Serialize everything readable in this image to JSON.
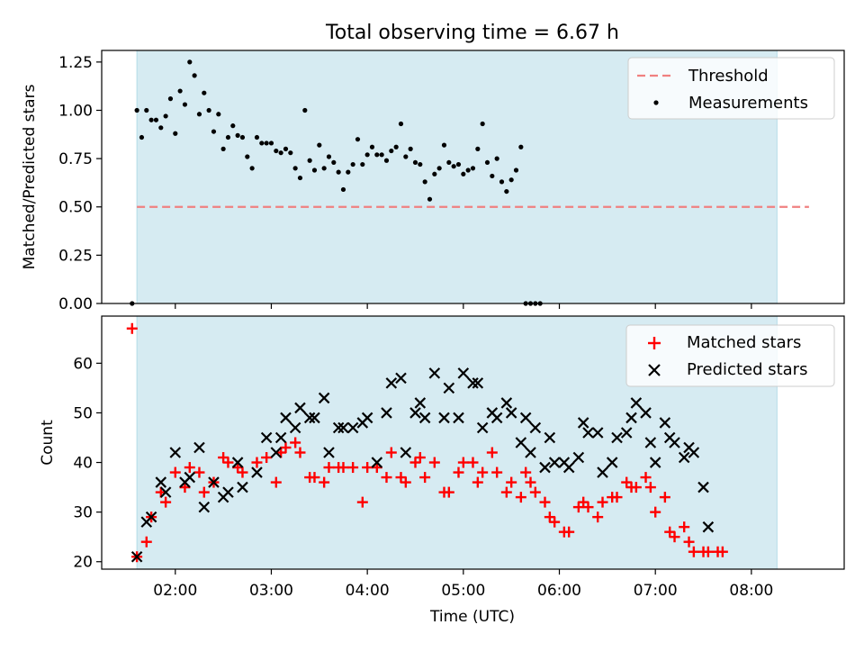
{
  "chart_data": [
    {
      "type": "scatter",
      "title": "Total observing time = 6.67 h",
      "xlabel": "",
      "ylabel": "Matched/Predicted stars",
      "ylim": [
        0,
        1.31
      ],
      "xlim": [
        "01:14",
        "08:58"
      ],
      "yticks": [
        "0.00",
        "0.25",
        "0.50",
        "0.75",
        "1.00",
        "1.25"
      ],
      "yticks_values": [
        0,
        0.25,
        0.5,
        0.75,
        1.0,
        1.25
      ],
      "shaded_interval": {
        "x": [
          "01:36",
          "08:16"
        ],
        "color": "#add8e6"
      },
      "legend_position": "upper right",
      "threshold": {
        "name": "Threshold",
        "y": 0.5,
        "x": [
          "01:36",
          "08:36"
        ],
        "color": "#f08080"
      },
      "series": [
        {
          "name": "Measurements",
          "marker": "dot",
          "color": "#000000",
          "points": [
            [
              "01:33",
              0.0
            ],
            [
              "01:36",
              1.0
            ],
            [
              "01:39",
              0.86
            ],
            [
              "01:42",
              1.0
            ],
            [
              "01:45",
              0.95
            ],
            [
              "01:48",
              0.95
            ],
            [
              "01:51",
              0.91
            ],
            [
              "01:54",
              0.97
            ],
            [
              "01:57",
              1.06
            ],
            [
              "02:00",
              0.88
            ],
            [
              "02:03",
              1.1
            ],
            [
              "02:06",
              1.03
            ],
            [
              "02:09",
              1.25
            ],
            [
              "02:12",
              1.18
            ],
            [
              "02:15",
              0.98
            ],
            [
              "02:18",
              1.09
            ],
            [
              "02:21",
              1.0
            ],
            [
              "02:24",
              0.89
            ],
            [
              "02:27",
              0.98
            ],
            [
              "02:30",
              0.8
            ],
            [
              "02:33",
              0.86
            ],
            [
              "02:36",
              0.92
            ],
            [
              "02:39",
              0.87
            ],
            [
              "02:42",
              0.86
            ],
            [
              "02:45",
              0.76
            ],
            [
              "02:48",
              0.7
            ],
            [
              "02:51",
              0.86
            ],
            [
              "02:54",
              0.83
            ],
            [
              "02:57",
              0.83
            ],
            [
              "03:00",
              0.83
            ],
            [
              "03:03",
              0.79
            ],
            [
              "03:06",
              0.78
            ],
            [
              "03:09",
              0.8
            ],
            [
              "03:12",
              0.78
            ],
            [
              "03:15",
              0.7
            ],
            [
              "03:18",
              0.65
            ],
            [
              "03:21",
              1.0
            ],
            [
              "03:24",
              0.74
            ],
            [
              "03:27",
              0.69
            ],
            [
              "03:30",
              0.82
            ],
            [
              "03:33",
              0.7
            ],
            [
              "03:36",
              0.76
            ],
            [
              "03:39",
              0.73
            ],
            [
              "03:42",
              0.68
            ],
            [
              "03:45",
              0.59
            ],
            [
              "03:48",
              0.68
            ],
            [
              "03:51",
              0.72
            ],
            [
              "03:54",
              0.85
            ],
            [
              "03:57",
              0.72
            ],
            [
              "04:00",
              0.77
            ],
            [
              "04:03",
              0.81
            ],
            [
              "04:06",
              0.77
            ],
            [
              "04:09",
              0.77
            ],
            [
              "04:12",
              0.74
            ],
            [
              "04:15",
              0.79
            ],
            [
              "04:18",
              0.81
            ],
            [
              "04:21",
              0.93
            ],
            [
              "04:24",
              0.76
            ],
            [
              "04:27",
              0.8
            ],
            [
              "04:30",
              0.73
            ],
            [
              "04:33",
              0.72
            ],
            [
              "04:36",
              0.63
            ],
            [
              "04:39",
              0.54
            ],
            [
              "04:42",
              0.67
            ],
            [
              "04:45",
              0.7
            ],
            [
              "04:48",
              0.82
            ],
            [
              "04:51",
              0.73
            ],
            [
              "04:54",
              0.71
            ],
            [
              "04:57",
              0.72
            ],
            [
              "05:00",
              0.67
            ],
            [
              "05:03",
              0.69
            ],
            [
              "05:06",
              0.7
            ],
            [
              "05:09",
              0.8
            ],
            [
              "05:12",
              0.93
            ],
            [
              "05:15",
              0.73
            ],
            [
              "05:18",
              0.66
            ],
            [
              "05:21",
              0.75
            ],
            [
              "05:24",
              0.63
            ],
            [
              "05:27",
              0.58
            ],
            [
              "05:30",
              0.64
            ],
            [
              "05:33",
              0.69
            ],
            [
              "05:36",
              0.81
            ],
            [
              "05:39",
              0.0
            ],
            [
              "05:42",
              0.0
            ],
            [
              "05:45",
              0.0
            ],
            [
              "05:48",
              0.0
            ]
          ]
        }
      ]
    },
    {
      "type": "scatter",
      "title": "",
      "xlabel": "Time (UTC)",
      "ylabel": "Count",
      "ylim": [
        18.5,
        69.5
      ],
      "xlim": [
        "01:14",
        "08:58"
      ],
      "xticks": [
        "02:00",
        "03:00",
        "04:00",
        "05:00",
        "06:00",
        "07:00",
        "08:00"
      ],
      "yticks": [
        "20",
        "30",
        "40",
        "50",
        "60"
      ],
      "yticks_values": [
        20,
        30,
        40,
        50,
        60
      ],
      "shaded_interval": {
        "x": [
          "01:36",
          "08:16"
        ],
        "color": "#add8e6"
      },
      "legend_position": "upper right",
      "series": [
        {
          "name": "Matched stars",
          "marker": "plus",
          "color": "#ff0000",
          "points": [
            [
              "01:33",
              67
            ],
            [
              "01:36",
              21
            ],
            [
              "01:42",
              24
            ],
            [
              "01:45",
              29
            ],
            [
              "01:51",
              34
            ],
            [
              "01:54",
              32
            ],
            [
              "02:00",
              38
            ],
            [
              "02:06",
              35
            ],
            [
              "02:09",
              39
            ],
            [
              "02:15",
              38
            ],
            [
              "02:18",
              34
            ],
            [
              "02:24",
              36
            ],
            [
              "02:30",
              41
            ],
            [
              "02:33",
              40
            ],
            [
              "02:39",
              39
            ],
            [
              "02:42",
              38
            ],
            [
              "02:51",
              40
            ],
            [
              "02:57",
              41
            ],
            [
              "03:03",
              36
            ],
            [
              "03:06",
              42
            ],
            [
              "03:09",
              43
            ],
            [
              "03:15",
              44
            ],
            [
              "03:18",
              42
            ],
            [
              "03:24",
              37
            ],
            [
              "03:27",
              37
            ],
            [
              "03:33",
              36
            ],
            [
              "03:36",
              39
            ],
            [
              "03:42",
              39
            ],
            [
              "03:45",
              39
            ],
            [
              "03:51",
              39
            ],
            [
              "03:57",
              32
            ],
            [
              "04:00",
              39
            ],
            [
              "04:06",
              39
            ],
            [
              "04:12",
              37
            ],
            [
              "04:15",
              42
            ],
            [
              "04:21",
              37
            ],
            [
              "04:24",
              36
            ],
            [
              "04:30",
              40
            ],
            [
              "04:33",
              41
            ],
            [
              "04:36",
              37
            ],
            [
              "04:42",
              40
            ],
            [
              "04:48",
              34
            ],
            [
              "04:51",
              34
            ],
            [
              "04:57",
              38
            ],
            [
              "05:00",
              40
            ],
            [
              "05:06",
              40
            ],
            [
              "05:09",
              36
            ],
            [
              "05:12",
              38
            ],
            [
              "05:18",
              42
            ],
            [
              "05:21",
              38
            ],
            [
              "05:27",
              34
            ],
            [
              "05:30",
              36
            ],
            [
              "05:36",
              33
            ],
            [
              "05:39",
              38
            ],
            [
              "05:42",
              36
            ],
            [
              "05:45",
              34
            ],
            [
              "05:51",
              32
            ],
            [
              "05:54",
              29
            ],
            [
              "05:57",
              28
            ],
            [
              "06:03",
              26
            ],
            [
              "06:06",
              26
            ],
            [
              "06:12",
              31
            ],
            [
              "06:15",
              32
            ],
            [
              "06:18",
              31
            ],
            [
              "06:24",
              29
            ],
            [
              "06:27",
              32
            ],
            [
              "06:33",
              33
            ],
            [
              "06:36",
              33
            ],
            [
              "06:42",
              36
            ],
            [
              "06:45",
              35
            ],
            [
              "06:48",
              35
            ],
            [
              "06:54",
              37
            ],
            [
              "06:57",
              35
            ],
            [
              "07:00",
              30
            ],
            [
              "07:06",
              33
            ],
            [
              "07:09",
              26
            ],
            [
              "07:12",
              25
            ],
            [
              "07:18",
              27
            ],
            [
              "07:21",
              24
            ],
            [
              "07:24",
              22
            ],
            [
              "07:30",
              22
            ],
            [
              "07:33",
              22
            ],
            [
              "07:39",
              22
            ],
            [
              "07:42",
              22
            ]
          ]
        },
        {
          "name": "Predicted stars",
          "marker": "x",
          "color": "#000000",
          "points": [
            [
              "01:36",
              21
            ],
            [
              "01:42",
              28
            ],
            [
              "01:45",
              29
            ],
            [
              "01:51",
              36
            ],
            [
              "01:54",
              34
            ],
            [
              "02:00",
              42
            ],
            [
              "02:06",
              36
            ],
            [
              "02:09",
              37
            ],
            [
              "02:15",
              43
            ],
            [
              "02:18",
              31
            ],
            [
              "02:24",
              36
            ],
            [
              "02:30",
              33
            ],
            [
              "02:33",
              34
            ],
            [
              "02:39",
              40
            ],
            [
              "02:42",
              35
            ],
            [
              "02:51",
              38
            ],
            [
              "02:57",
              45
            ],
            [
              "03:03",
              42
            ],
            [
              "03:06",
              45
            ],
            [
              "03:09",
              49
            ],
            [
              "03:15",
              47
            ],
            [
              "03:18",
              51
            ],
            [
              "03:24",
              49
            ],
            [
              "03:27",
              49
            ],
            [
              "03:33",
              53
            ],
            [
              "03:36",
              42
            ],
            [
              "03:42",
              47
            ],
            [
              "03:45",
              47
            ],
            [
              "03:51",
              47
            ],
            [
              "03:57",
              48
            ],
            [
              "04:00",
              49
            ],
            [
              "04:06",
              40
            ],
            [
              "04:12",
              50
            ],
            [
              "04:15",
              56
            ],
            [
              "04:21",
              57
            ],
            [
              "04:24",
              42
            ],
            [
              "04:30",
              50
            ],
            [
              "04:33",
              52
            ],
            [
              "04:36",
              49
            ],
            [
              "04:42",
              58
            ],
            [
              "04:48",
              49
            ],
            [
              "04:51",
              55
            ],
            [
              "04:57",
              49
            ],
            [
              "05:00",
              58
            ],
            [
              "05:06",
              56
            ],
            [
              "05:09",
              56
            ],
            [
              "05:12",
              47
            ],
            [
              "05:18",
              50
            ],
            [
              "05:21",
              49
            ],
            [
              "05:27",
              52
            ],
            [
              "05:30",
              50
            ],
            [
              "05:36",
              44
            ],
            [
              "05:39",
              49
            ],
            [
              "05:42",
              42
            ],
            [
              "05:45",
              47
            ],
            [
              "05:51",
              39
            ],
            [
              "05:54",
              45
            ],
            [
              "05:57",
              40
            ],
            [
              "06:03",
              40
            ],
            [
              "06:06",
              39
            ],
            [
              "06:12",
              41
            ],
            [
              "06:15",
              48
            ],
            [
              "06:18",
              46
            ],
            [
              "06:24",
              46
            ],
            [
              "06:27",
              38
            ],
            [
              "06:33",
              40
            ],
            [
              "06:36",
              45
            ],
            [
              "06:42",
              46
            ],
            [
              "06:45",
              49
            ],
            [
              "06:48",
              52
            ],
            [
              "06:54",
              50
            ],
            [
              "06:57",
              44
            ],
            [
              "07:00",
              40
            ],
            [
              "07:06",
              48
            ],
            [
              "07:09",
              45
            ],
            [
              "07:12",
              44
            ],
            [
              "07:18",
              41
            ],
            [
              "07:21",
              43
            ],
            [
              "07:24",
              42
            ],
            [
              "07:30",
              35
            ],
            [
              "07:33",
              27
            ]
          ]
        }
      ]
    }
  ]
}
